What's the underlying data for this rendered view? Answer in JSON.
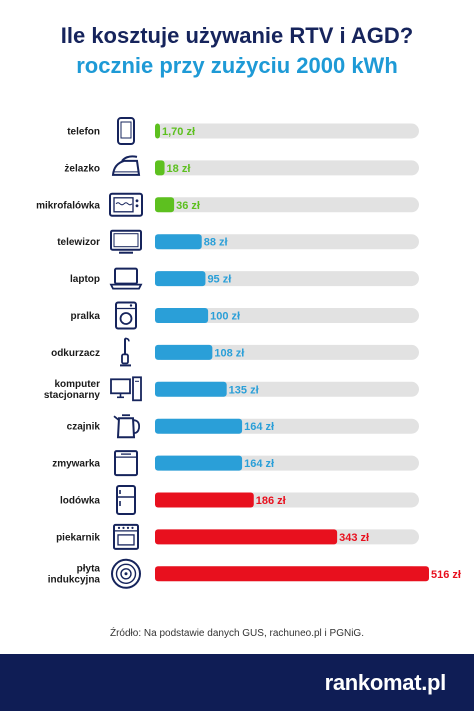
{
  "title": "Ile kosztuje używanie RTV i AGD?",
  "subtitle": "rocznie przy zużyciu 2000 kWh",
  "source": "Źródło: Na podstawie danych GUS, rachuneo.pl i PGNiG.",
  "logo": "rankomat.pl",
  "colors": {
    "green": "#5dc01f",
    "blue": "#2a9fd8",
    "red": "#e8101e",
    "track": "#e2e2e2",
    "navy": "#0f1d55",
    "icon": "#16245c"
  },
  "chart_data": {
    "type": "bar",
    "orientation": "horizontal",
    "xlim": [
      0,
      516
    ],
    "unit": "zł",
    "categories": [
      {
        "label": [
          "telefon"
        ],
        "value": 1.7,
        "display": "1,70 zł",
        "color": "green",
        "icon": "phone-icon"
      },
      {
        "label": [
          "żelazko"
        ],
        "value": 18,
        "display": "18 zł",
        "color": "green",
        "icon": "iron-icon"
      },
      {
        "label": [
          "mikrofalówka"
        ],
        "value": 36,
        "display": "36 zł",
        "color": "green",
        "icon": "microwave-icon"
      },
      {
        "label": [
          "telewizor"
        ],
        "value": 88,
        "display": "88 zł",
        "color": "blue",
        "icon": "tv-icon"
      },
      {
        "label": [
          "laptop"
        ],
        "value": 95,
        "display": "95 zł",
        "color": "blue",
        "icon": "laptop-icon"
      },
      {
        "label": [
          "pralka"
        ],
        "value": 100,
        "display": "100 zł",
        "color": "blue",
        "icon": "washing-machine-icon"
      },
      {
        "label": [
          "odkurzacz"
        ],
        "value": 108,
        "display": "108 zł",
        "color": "blue",
        "icon": "vacuum-icon"
      },
      {
        "label": [
          "komputer",
          "stacjonarny"
        ],
        "value": 135,
        "display": "135 zł",
        "color": "blue",
        "icon": "desktop-computer-icon"
      },
      {
        "label": [
          "czajnik"
        ],
        "value": 164,
        "display": "164 zł",
        "color": "blue",
        "icon": "kettle-icon"
      },
      {
        "label": [
          "zmywarka"
        ],
        "value": 164,
        "display": "164 zł",
        "color": "blue",
        "icon": "dishwasher-icon"
      },
      {
        "label": [
          "lodówka"
        ],
        "value": 186,
        "display": "186 zł",
        "color": "red",
        "icon": "fridge-icon"
      },
      {
        "label": [
          "piekarnik"
        ],
        "value": 343,
        "display": "343 zł",
        "color": "red",
        "icon": "oven-icon"
      },
      {
        "label": [
          "płyta",
          "indukcyjna"
        ],
        "value": 516,
        "display": "516 zł",
        "color": "red",
        "icon": "induction-hob-icon"
      }
    ]
  }
}
